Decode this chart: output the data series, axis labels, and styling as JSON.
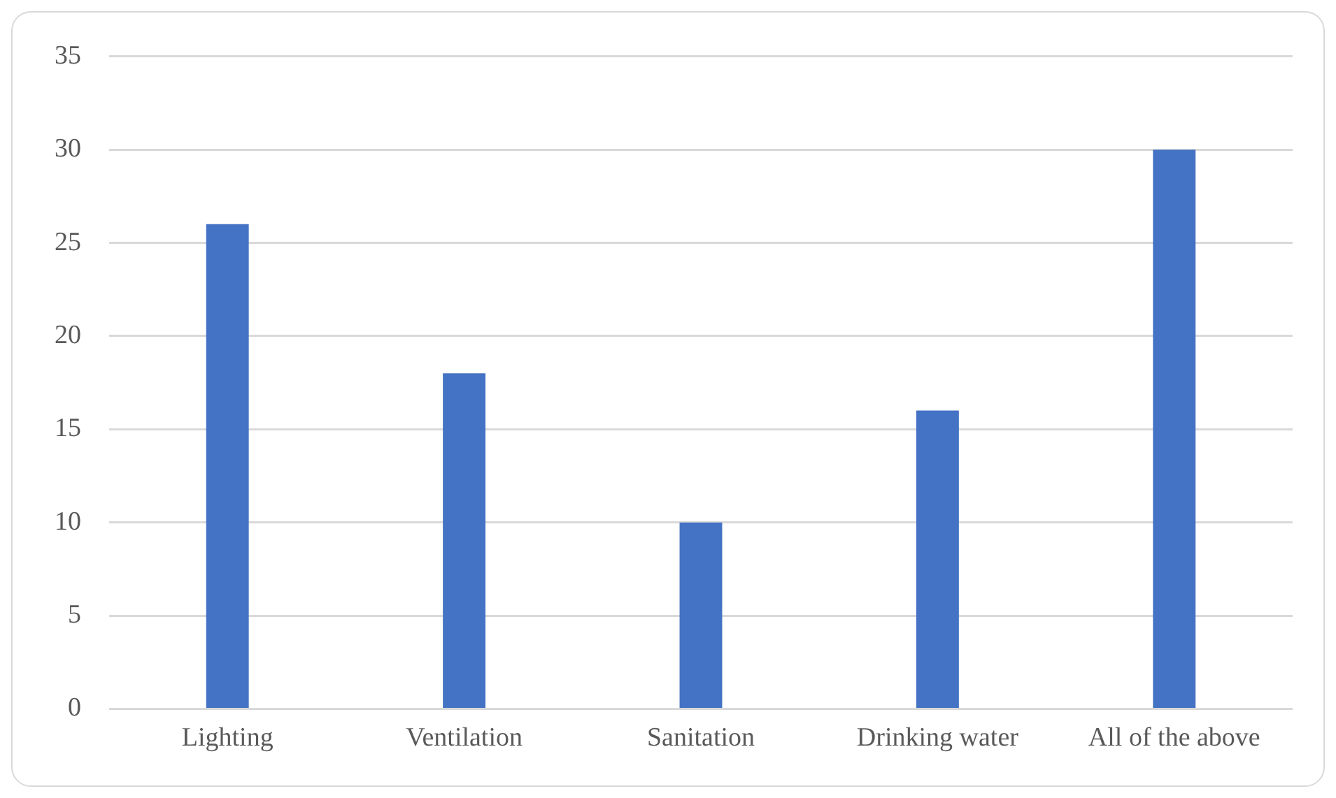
{
  "chart_data": {
    "type": "bar",
    "categories": [
      "Lighting",
      "Ventilation",
      "Sanitation",
      "Drinking water",
      "All of the above"
    ],
    "values": [
      26,
      18,
      10,
      16,
      30
    ],
    "color": "#4472c4",
    "ylim": [
      0,
      35
    ],
    "yticks": [
      0,
      5,
      10,
      15,
      20,
      25,
      30,
      35
    ],
    "grid": "y",
    "legend": false
  }
}
